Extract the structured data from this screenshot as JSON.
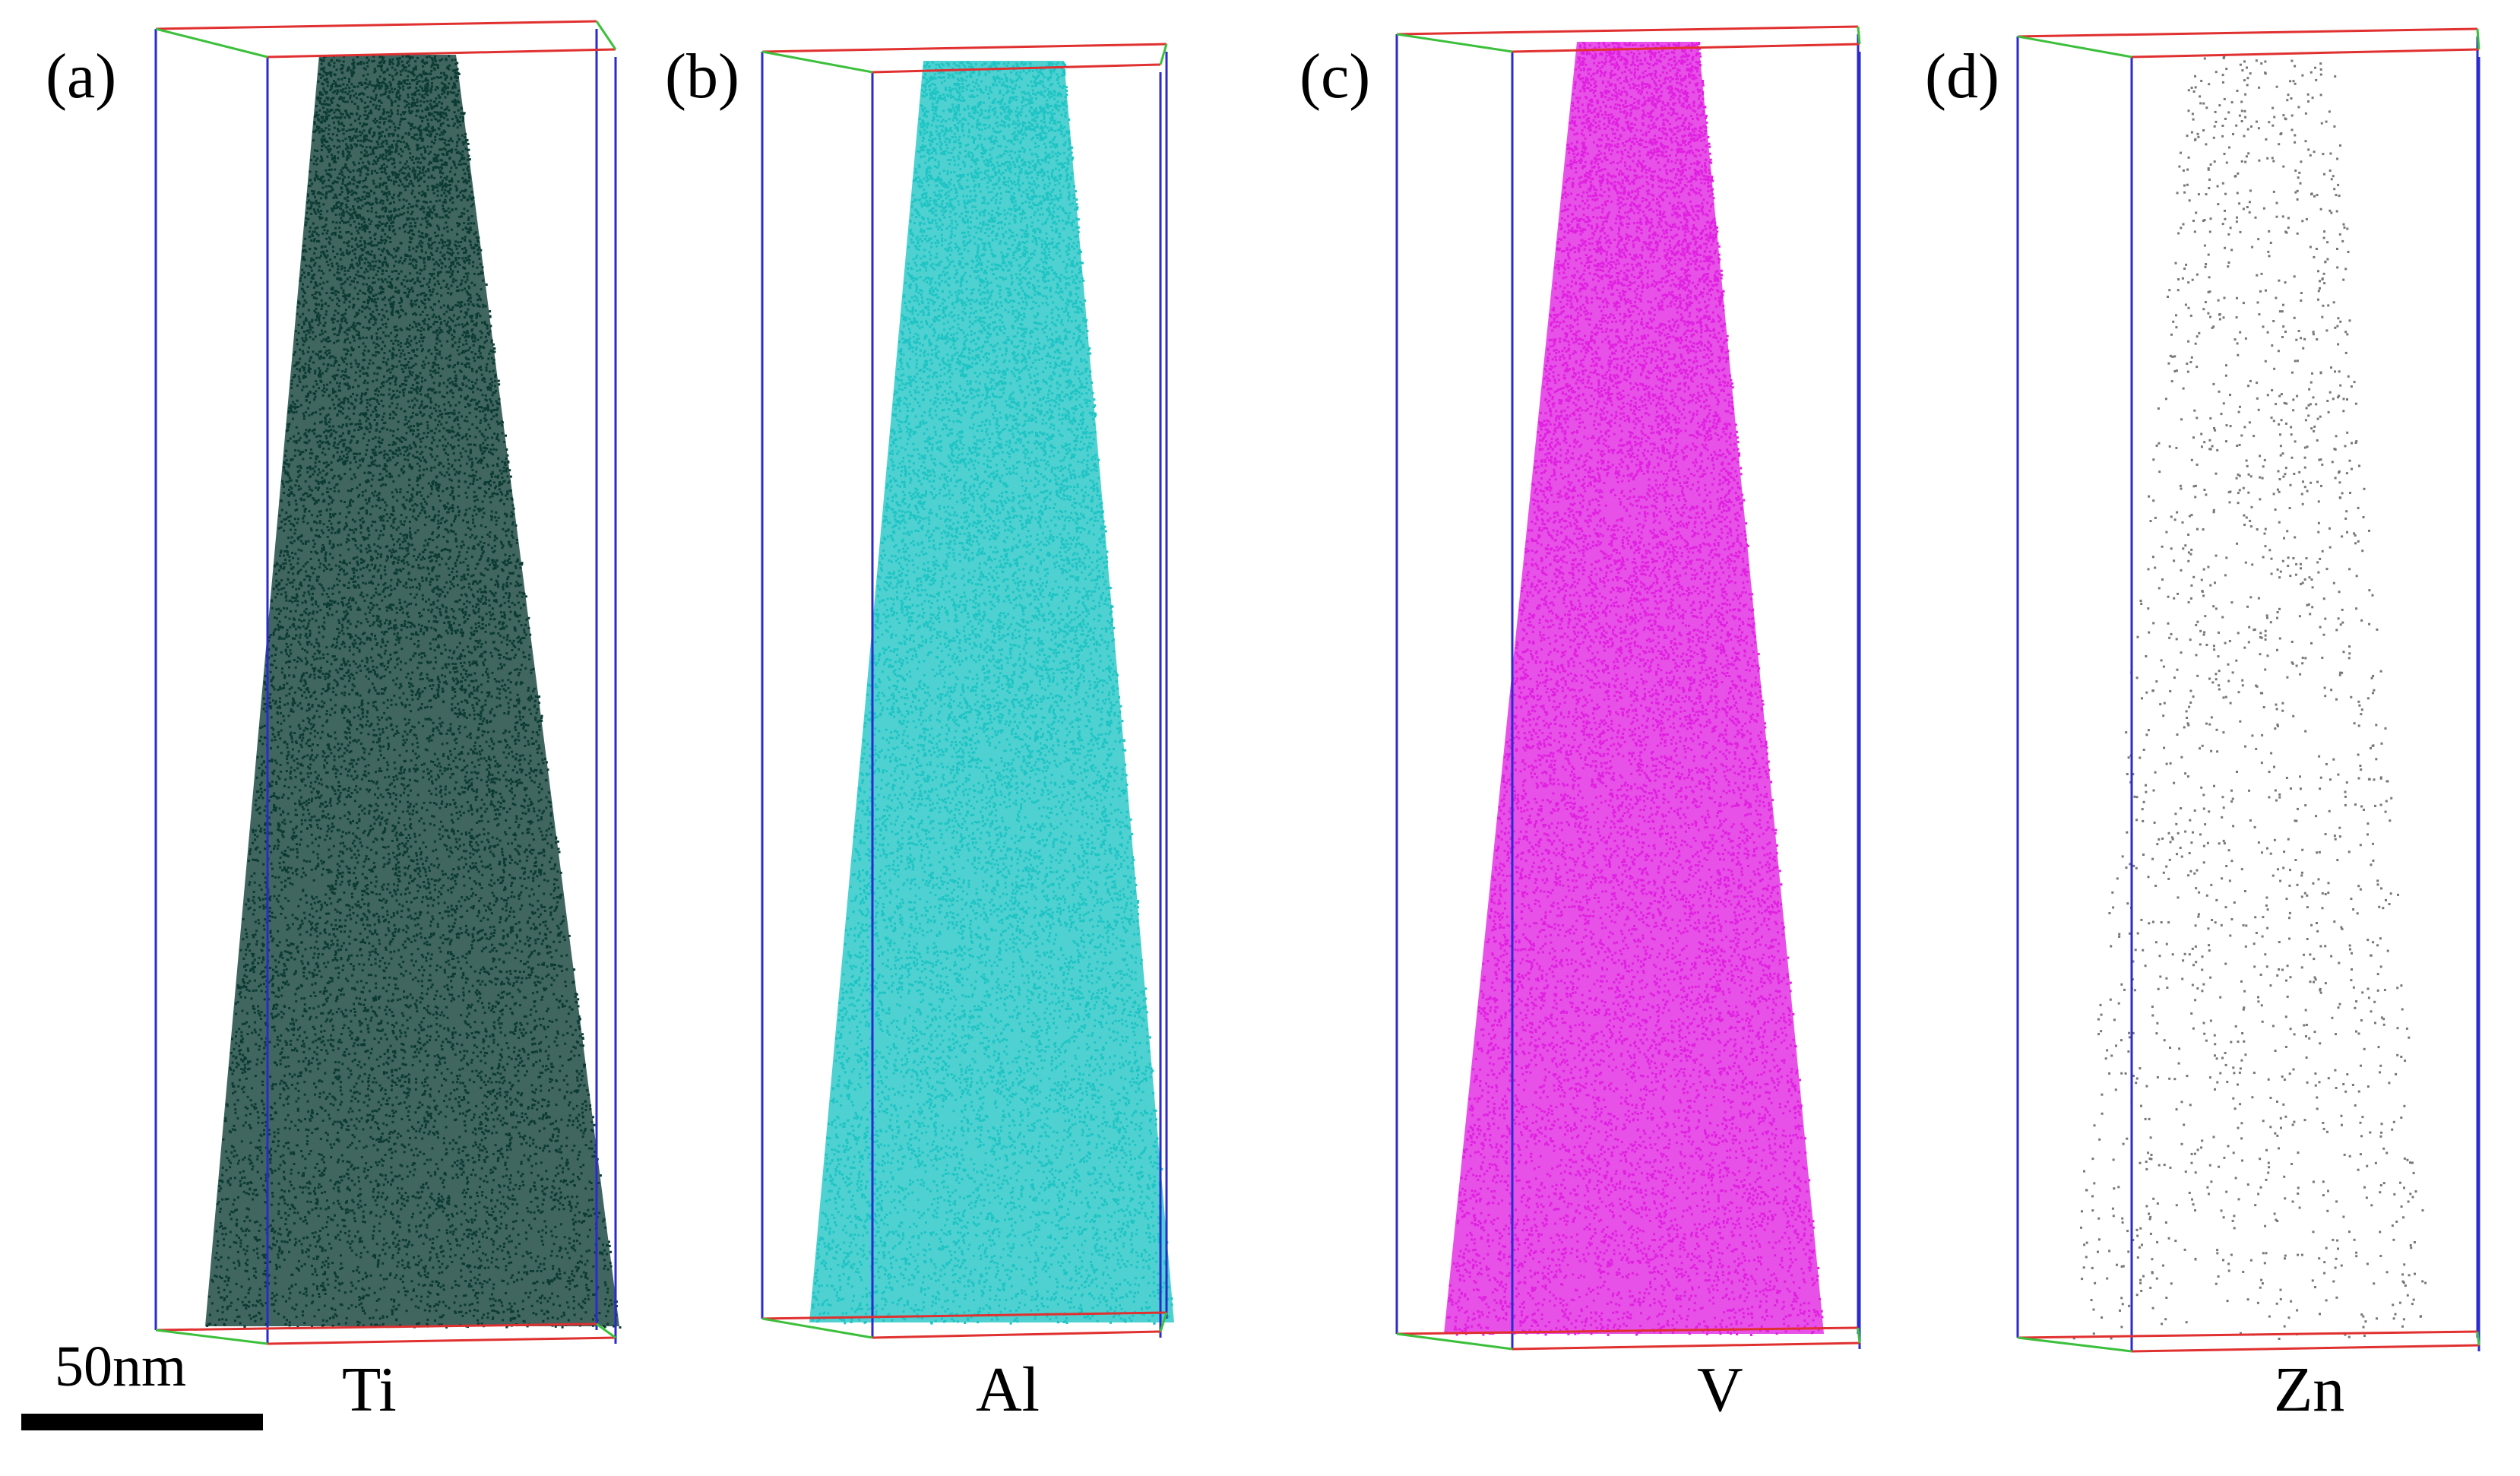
{
  "panels": [
    {
      "label": "(a)",
      "element": "Ti",
      "color": "#0b3b33",
      "density": 1.0
    },
    {
      "label": "(b)",
      "element": "Al",
      "color": "#1ec4c4",
      "density": 1.0
    },
    {
      "label": "(c)",
      "element": "V",
      "color": "#e020e0",
      "density": 1.0
    },
    {
      "label": "(d)",
      "element": "Zn",
      "color": "#777777",
      "density": 0.12
    }
  ],
  "scale_bar": {
    "label": "50nm"
  }
}
